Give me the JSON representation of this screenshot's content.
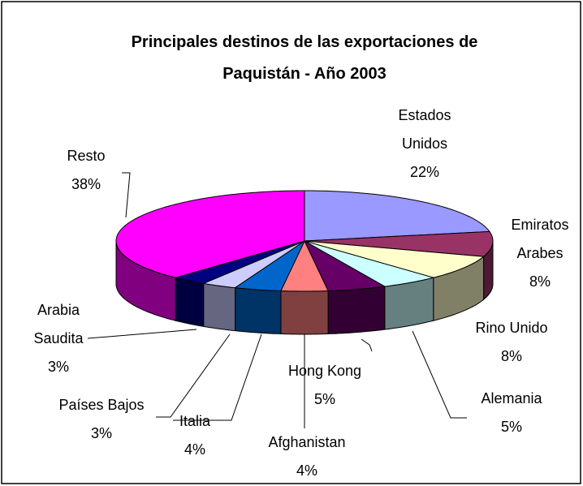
{
  "chart_data": {
    "type": "pie3d",
    "title": "Principales destinos de las exportaciones de Paquistán - Año 2003",
    "categories": [
      "Estados Unidos",
      "Emiratos Arabes",
      "Rino Unido",
      "Alemania",
      "Hong Kong",
      "Afghanistan",
      "Italia",
      "Países Bajos",
      "Arabia Saudita",
      "Resto"
    ],
    "values": [
      22,
      8,
      8,
      5,
      5,
      4,
      4,
      3,
      3,
      38
    ],
    "value_labels": [
      "22%",
      "8%",
      "8%",
      "5%",
      "5%",
      "4%",
      "4%",
      "3%",
      "3%",
      "38%"
    ],
    "colors": [
      "#9999ff",
      "#993366",
      "#ffffcc",
      "#ccffff",
      "#660066",
      "#ff8080",
      "#0066cc",
      "#ccccff",
      "#000080",
      "#ff00ff"
    ]
  }
}
